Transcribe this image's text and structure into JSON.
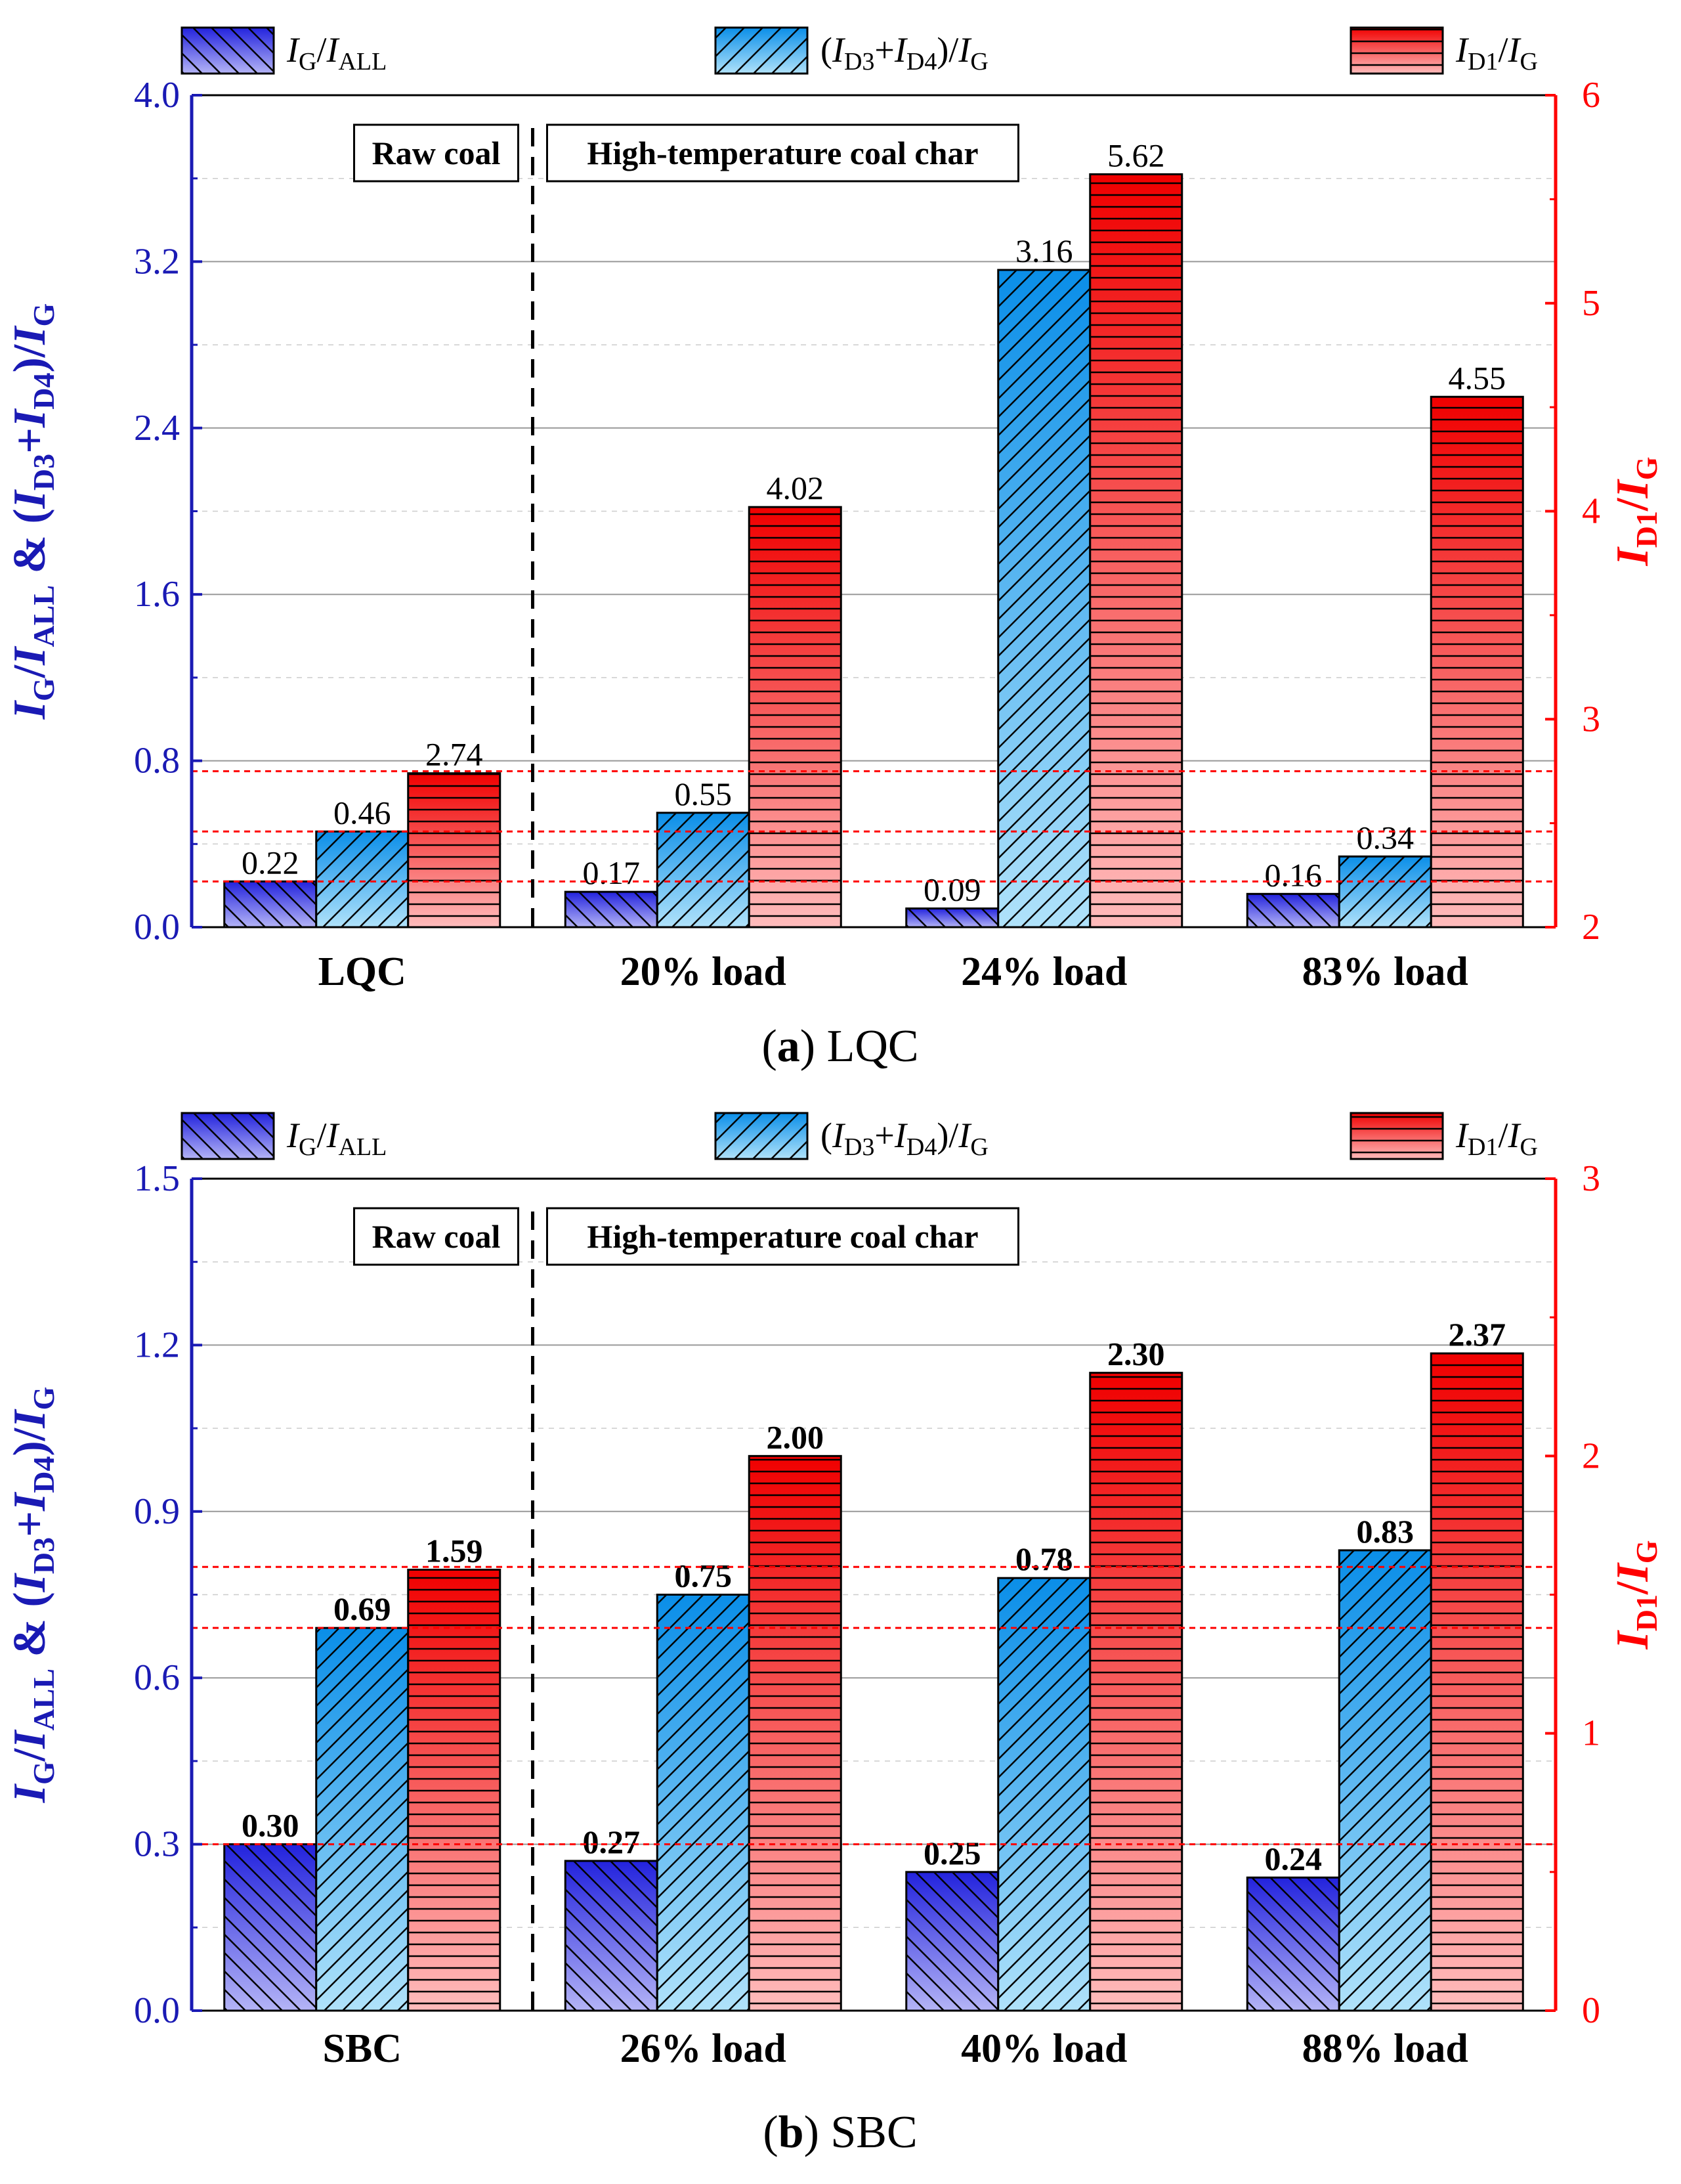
{
  "colors": {
    "left_axis": "#1a1ab4",
    "right_axis": "#ff0000",
    "series_ig": [
      "#2222dd",
      "#b4b4f6"
    ],
    "series_d34": [
      "#0a8ee8",
      "#b0e2fa"
    ],
    "series_d1": [
      "#f00000",
      "#ffbcbc"
    ],
    "ref_line": "#ff0000",
    "grid_major": "#999999",
    "grid_minor": "#cccccc"
  },
  "chart_data": [
    {
      "type": "bar",
      "caption_letter": "a",
      "caption_text": "LQC",
      "bold_values": false,
      "categories": [
        "LQC",
        "20% load",
        "24% load",
        "83% load"
      ],
      "divider_after_index": 0,
      "group_labels": {
        "raw": "Raw coal",
        "char": "High-temperature coal char"
      },
      "left_axis": {
        "min": 0,
        "max": 4.0,
        "ticks": [
          "0.0",
          "0.8",
          "1.6",
          "2.4",
          "3.2",
          "4.0"
        ],
        "tick_values": [
          0,
          0.8,
          1.6,
          2.4,
          3.2,
          4.0
        ],
        "minor_step": 0.4
      },
      "right_axis": {
        "min": 2,
        "max": 6,
        "ticks": [
          "2",
          "3",
          "4",
          "5",
          "6"
        ],
        "tick_values": [
          2,
          3,
          4,
          5,
          6
        ]
      },
      "legend": [
        "IG/IALL",
        "(ID3+ID4)/IG",
        "ID1/IG"
      ],
      "series": [
        {
          "name": "IG/IALL",
          "axis": "left",
          "values": [
            0.22,
            0.17,
            0.09,
            0.16
          ],
          "labels": [
            "0.22",
            "0.17",
            "0.09",
            "0.16"
          ]
        },
        {
          "name": "(ID3+ID4)/IG",
          "axis": "left",
          "values": [
            0.46,
            0.55,
            3.16,
            0.34
          ],
          "labels": [
            "0.46",
            "0.55",
            "3.16",
            "0.34"
          ]
        },
        {
          "name": "ID1/IG",
          "axis": "right",
          "values": [
            2.74,
            4.02,
            5.62,
            4.55
          ],
          "labels": [
            "2.74",
            "4.02",
            "5.62",
            "4.55"
          ]
        }
      ],
      "reference_lines": [
        0.22,
        0.46,
        0.75
      ]
    },
    {
      "type": "bar",
      "caption_letter": "b",
      "caption_text": "SBC",
      "bold_values": true,
      "categories": [
        "SBC",
        "26% load",
        "40% load",
        "88% load"
      ],
      "divider_after_index": 0,
      "group_labels": {
        "raw": "Raw coal",
        "char": "High-temperature coal char"
      },
      "left_axis": {
        "min": 0,
        "max": 1.5,
        "ticks": [
          "0.0",
          "0.3",
          "0.6",
          "0.9",
          "1.2",
          "1.5"
        ],
        "tick_values": [
          0,
          0.3,
          0.6,
          0.9,
          1.2,
          1.5
        ],
        "minor_step": 0.15
      },
      "right_axis": {
        "min": 0,
        "max": 3,
        "ticks": [
          "0",
          "1",
          "2",
          "3"
        ],
        "tick_values": [
          0,
          1,
          2,
          3
        ]
      },
      "legend": [
        "IG/IALL",
        "(ID3+ID4)/IG",
        "ID1/IG"
      ],
      "series": [
        {
          "name": "IG/IALL",
          "axis": "left",
          "values": [
            0.3,
            0.27,
            0.25,
            0.24
          ],
          "labels": [
            "0.30",
            "0.27",
            "0.25",
            "0.24"
          ]
        },
        {
          "name": "(ID3+ID4)/IG",
          "axis": "left",
          "values": [
            0.69,
            0.75,
            0.78,
            0.83
          ],
          "labels": [
            "0.69",
            "0.75",
            "0.78",
            "0.83"
          ]
        },
        {
          "name": "ID1/IG",
          "axis": "right",
          "values": [
            1.59,
            2.0,
            2.3,
            2.37
          ],
          "labels": [
            "1.59",
            "2.00",
            "2.30",
            "2.37"
          ]
        }
      ],
      "reference_lines": [
        0.3,
        0.69,
        0.8
      ]
    }
  ]
}
